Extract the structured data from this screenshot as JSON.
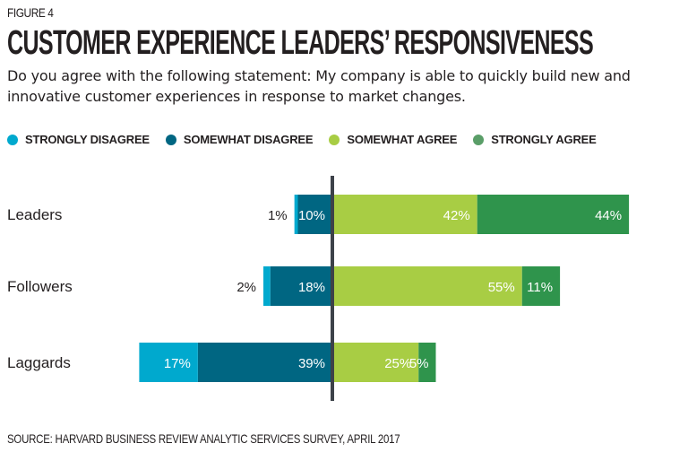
{
  "figure_label": "FIGURE 4",
  "chart_data": {
    "type": "bar",
    "orientation": "horizontal-diverging-stacked",
    "title": "CUSTOMER EXPERIENCE LEADERS’ RESPONSIVENESS",
    "subtitle": "Do you agree with the following statement: My company is able to quickly build new and innovative customer experiences in response to market changes.",
    "categories": [
      "Leaders",
      "Followers",
      "Laggards"
    ],
    "series": [
      {
        "name": "STRONGLY DISAGREE",
        "side": "negative",
        "color": "#00a9ce",
        "values": [
          1,
          2,
          17
        ],
        "labels": [
          "1%",
          "2%",
          "17%"
        ]
      },
      {
        "name": "SOMEWHAT DISAGREE",
        "side": "negative",
        "color": "#006682",
        "values": [
          10,
          18,
          39
        ],
        "labels": [
          "10%",
          "18%",
          "39%"
        ]
      },
      {
        "name": "SOMEWHAT AGREE",
        "side": "positive",
        "color": "#a8cd44",
        "values": [
          42,
          55,
          25
        ],
        "labels": [
          "42%",
          "55%",
          "25%"
        ]
      },
      {
        "name": "STRONGLY AGREE",
        "side": "positive",
        "color": "#2f944c",
        "values": [
          44,
          11,
          5
        ],
        "labels": [
          "44%",
          "11%",
          "5%"
        ]
      }
    ],
    "legend_position": "top-left",
    "xlabel": "",
    "ylabel": "",
    "grid": false,
    "center_line_color": "#3d4249",
    "source": "SOURCE: HARVARD BUSINESS REVIEW ANALYTIC SERVICES SURVEY, APRIL 2017"
  }
}
